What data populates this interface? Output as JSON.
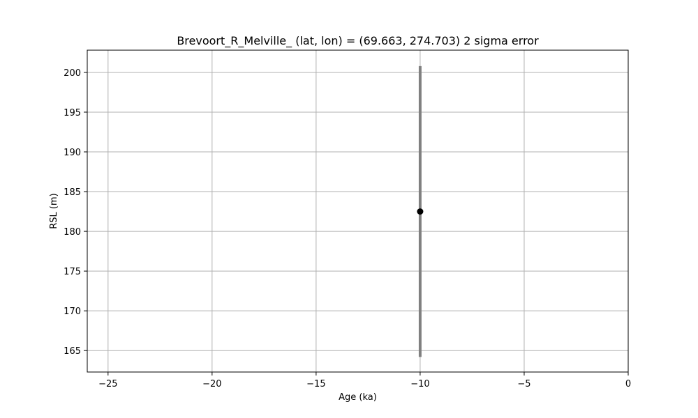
{
  "chart_data": {
    "type": "scatter",
    "title": "Brevoort_R_Melville_ (lat, lon) = (69.663, 274.703)  2 sigma error",
    "xlabel": "Age (ka)",
    "ylabel": "RSL (m)",
    "xlim": [
      -26,
      0
    ],
    "ylim": [
      162.3,
      202.8
    ],
    "xticks": [
      -25,
      -20,
      -15,
      -10,
      -5,
      0
    ],
    "yticks": [
      165,
      170,
      175,
      180,
      185,
      190,
      195,
      200
    ],
    "xtick_labels": [
      "−25",
      "−20",
      "−15",
      "−10",
      "−5",
      "0"
    ],
    "ytick_labels": [
      "165",
      "170",
      "175",
      "180",
      "185",
      "190",
      "195",
      "200"
    ],
    "grid": true,
    "points": [
      {
        "x": -10.0,
        "y": 182.5,
        "y_err_low": 164.2,
        "y_err_high": 200.8
      }
    ],
    "marker_color": "#000000",
    "errorbar_color": "#808080",
    "grid_color": "#b0b0b0"
  }
}
